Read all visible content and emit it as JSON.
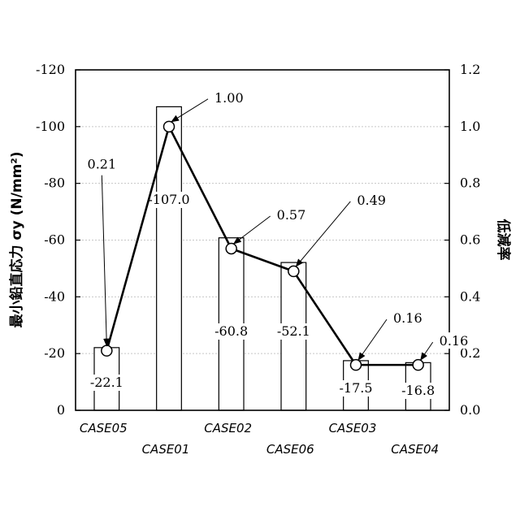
{
  "chart_data": {
    "type": "bar+line",
    "categories": [
      "CASE05",
      "CASE01",
      "CASE02",
      "CASE06",
      "CASE03",
      "CASE04"
    ],
    "bar_series": {
      "values": [
        -22.1,
        -107.0,
        -60.8,
        -52.1,
        -17.5,
        -16.8
      ],
      "labels": [
        "-22.1",
        "-107.0",
        "-60.8",
        "-52.1",
        "-17.5",
        "-16.8"
      ]
    },
    "line_series": {
      "values": [
        0.21,
        1.0,
        0.57,
        0.49,
        0.16,
        0.16
      ],
      "labels": [
        "0.21",
        "1.00",
        "0.57",
        "0.49",
        "0.16",
        "0.16"
      ]
    },
    "ylabel_left": "最小鉛直応力 σy (N/mm²)",
    "ylabel_right": "低減率",
    "y_left": {
      "lim": [
        0,
        -120
      ],
      "ticks": [
        "0",
        "-20",
        "-40",
        "-60",
        "-80",
        "-100",
        "-120"
      ]
    },
    "y_right": {
      "lim": [
        0,
        1.2
      ],
      "ticks": [
        "0.0",
        "0.2",
        "0.4",
        "0.6",
        "0.8",
        "1.0",
        "1.2"
      ]
    },
    "grid": true
  }
}
